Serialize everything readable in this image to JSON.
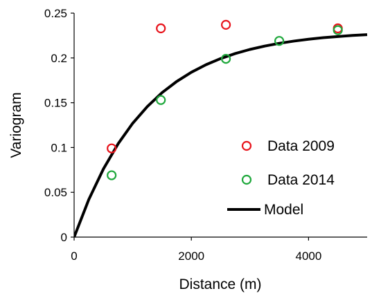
{
  "chart_data": {
    "type": "scatter",
    "title": "",
    "xlabel": "Distance (m)",
    "ylabel": "Variogram",
    "xlim": [
      0,
      5000
    ],
    "ylim": [
      0,
      0.25
    ],
    "x_ticks": [
      0,
      2000,
      4000
    ],
    "x_tick_labels": [
      "0",
      "2000",
      "4000"
    ],
    "y_ticks": [
      0,
      0.05,
      0.1,
      0.15,
      0.2,
      0.25
    ],
    "y_tick_labels": [
      "0",
      "0.05",
      "0.1",
      "0.15",
      "0.2",
      "0.25"
    ],
    "grid": false,
    "legend_position": "bottom-right",
    "series": [
      {
        "name": "Data 2009",
        "kind": "scatter",
        "marker": "open-circle",
        "color": "#e8141c",
        "x": [
          640,
          1480,
          2590,
          4500
        ],
        "y": [
          0.099,
          0.233,
          0.237,
          0.233
        ]
      },
      {
        "name": "Data 2014",
        "kind": "scatter",
        "marker": "open-circle",
        "color": "#1fa83c",
        "x": [
          640,
          1480,
          2590,
          3500,
          4500
        ],
        "y": [
          0.069,
          0.153,
          0.199,
          0.219,
          0.231
        ]
      },
      {
        "name": "Model",
        "kind": "line",
        "color": "#000000",
        "x": [
          0,
          250,
          500,
          750,
          1000,
          1250,
          1500,
          1750,
          2000,
          2250,
          2500,
          2750,
          3000,
          3250,
          3500,
          3750,
          4000,
          4250,
          4500,
          4750,
          5000
        ],
        "y": [
          0.0,
          0.0419,
          0.0761,
          0.1041,
          0.1271,
          0.1458,
          0.1612,
          0.1737,
          0.184,
          0.1924,
          0.1993,
          0.2049,
          0.2095,
          0.2132,
          0.2163,
          0.2188,
          0.2209,
          0.2226,
          0.2239,
          0.2251,
          0.226
        ]
      }
    ]
  }
}
